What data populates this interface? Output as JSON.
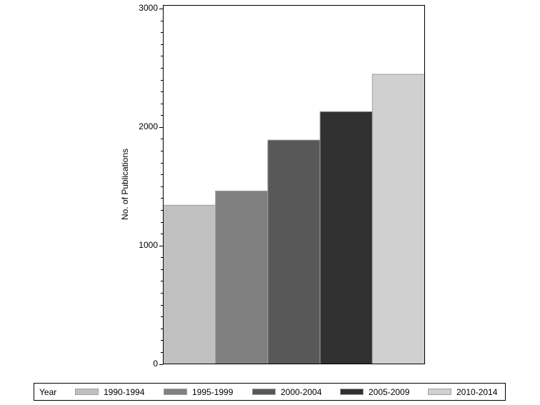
{
  "chart_data": {
    "type": "bar",
    "title": "",
    "xlabel": "",
    "ylabel": "No. of Publications",
    "ylim": [
      0,
      3000
    ],
    "yticks": [
      0,
      1000,
      2000,
      3000
    ],
    "minor_tick_step": 100,
    "grid": false,
    "legend_position": "bottom",
    "legend_title": "Year",
    "categories": [
      "1990-1994",
      "1995-1999",
      "2000-2004",
      "2005-2009",
      "2010-2014"
    ],
    "values": [
      1340,
      1460,
      1890,
      2130,
      2445
    ],
    "colors": [
      "#c0c0c0",
      "#808080",
      "#585858",
      "#303030",
      "#d0d0d0"
    ]
  },
  "axis": {
    "ylabel": "No. of Publications",
    "tick_labels": [
      "0",
      "1000",
      "2000",
      "3000"
    ]
  },
  "legend": {
    "title": "Year",
    "items": [
      {
        "label": "1990-1994",
        "color": "#c0c0c0"
      },
      {
        "label": "1995-1999",
        "color": "#808080"
      },
      {
        "label": "2000-2004",
        "color": "#585858"
      },
      {
        "label": "2005-2009",
        "color": "#303030"
      },
      {
        "label": "2010-2014",
        "color": "#d0d0d0"
      }
    ]
  }
}
